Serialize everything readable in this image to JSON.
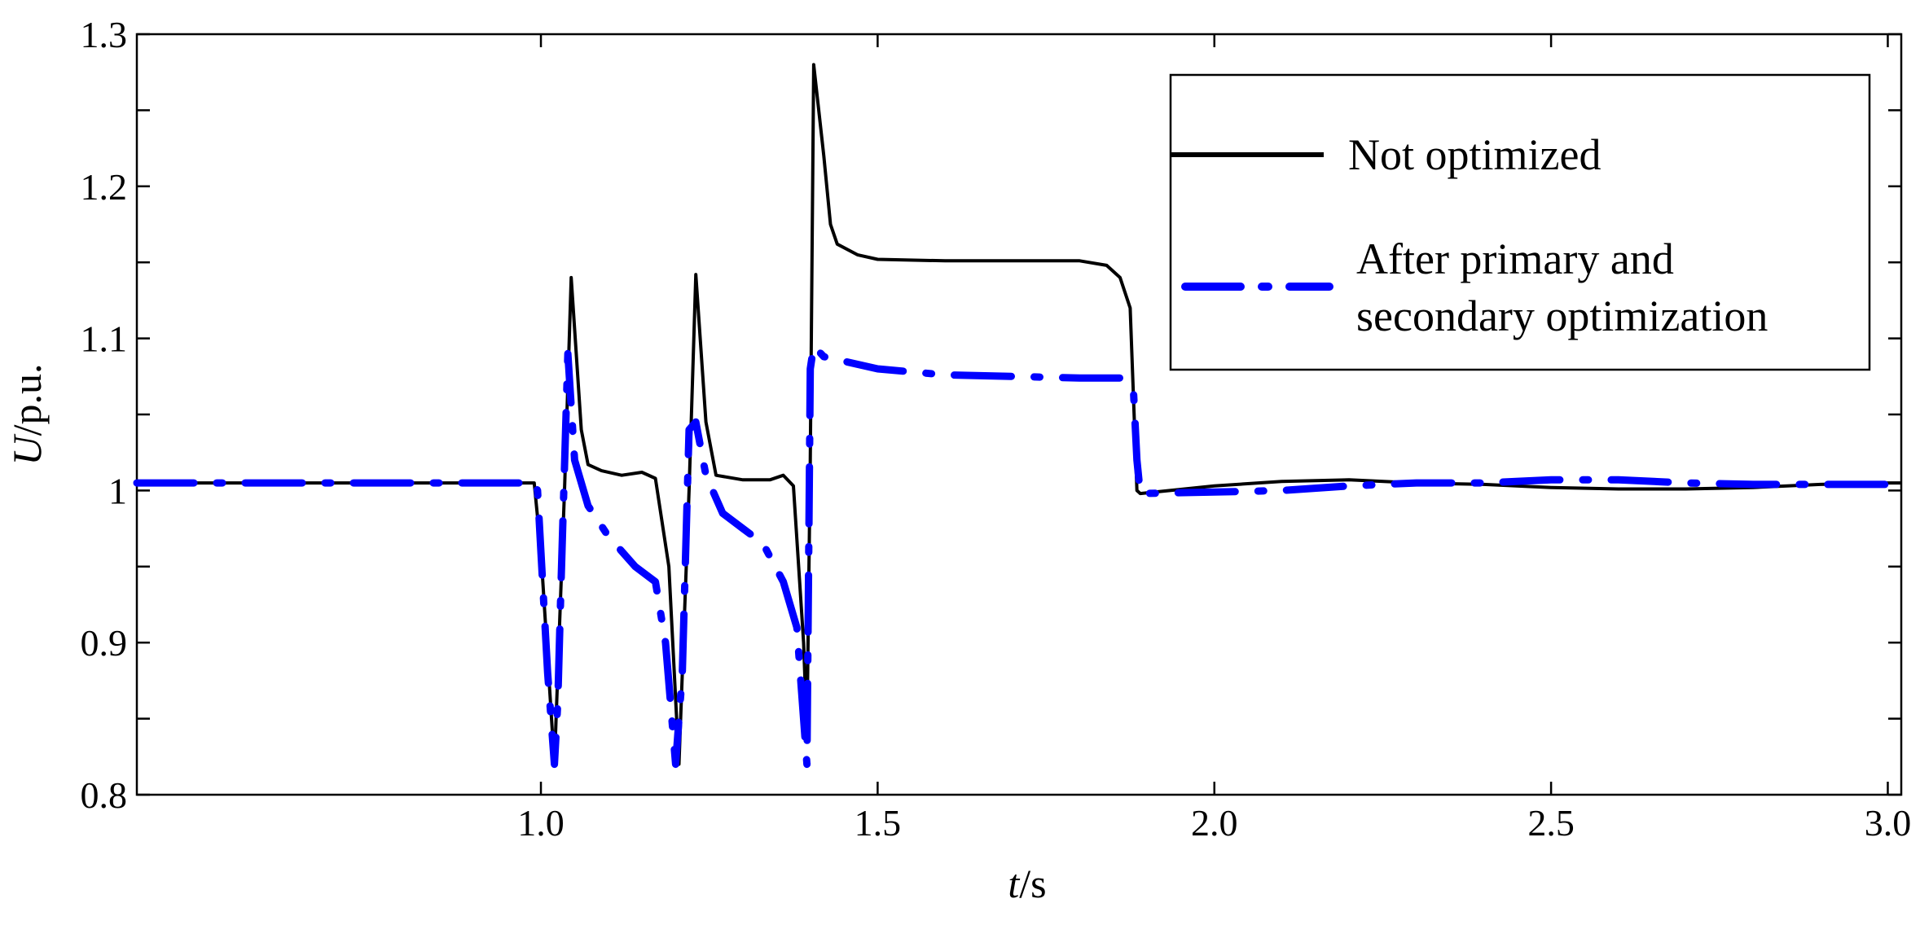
{
  "chart_data": {
    "type": "line",
    "title": "",
    "xlabel": {
      "italic": "t",
      "rest": "/s"
    },
    "ylabel": {
      "italic": "U",
      "rest": "/p.u."
    },
    "xlim": [
      0.4,
      3.02
    ],
    "ylim": [
      0.8,
      1.3
    ],
    "x_ticks": [
      1.0,
      1.5,
      2.0,
      2.5,
      3.0
    ],
    "x_tick_labels": [
      "1.0",
      "1.5",
      "2.0",
      "2.5",
      "3.0"
    ],
    "y_ticks": [
      0.8,
      0.9,
      1.0,
      1.1,
      1.2,
      1.3
    ],
    "y_tick_labels": [
      "0.8",
      "0.9",
      "1",
      "1.1",
      "1.2",
      "1.3"
    ],
    "grid": false,
    "legend_position": "top-right",
    "series": [
      {
        "name": "Not optimized",
        "color": "#000000",
        "style": "solid",
        "points": [
          [
            0.4,
            1.005
          ],
          [
            0.99,
            1.005
          ],
          [
            1.0,
            0.96
          ],
          [
            1.02,
            0.82
          ],
          [
            1.035,
            1.0
          ],
          [
            1.045,
            1.14
          ],
          [
            1.06,
            1.04
          ],
          [
            1.07,
            1.017
          ],
          [
            1.09,
            1.013
          ],
          [
            1.12,
            1.01
          ],
          [
            1.15,
            1.012
          ],
          [
            1.17,
            1.008
          ],
          [
            1.19,
            0.95
          ],
          [
            1.205,
            0.82
          ],
          [
            1.22,
            1.0
          ],
          [
            1.23,
            1.142
          ],
          [
            1.245,
            1.045
          ],
          [
            1.26,
            1.01
          ],
          [
            1.3,
            1.007
          ],
          [
            1.34,
            1.007
          ],
          [
            1.36,
            1.01
          ],
          [
            1.375,
            1.003
          ],
          [
            1.39,
            0.9
          ],
          [
            1.395,
            0.84
          ],
          [
            1.4,
            1.02
          ],
          [
            1.405,
            1.28
          ],
          [
            1.42,
            1.22
          ],
          [
            1.43,
            1.175
          ],
          [
            1.44,
            1.162
          ],
          [
            1.47,
            1.155
          ],
          [
            1.5,
            1.152
          ],
          [
            1.6,
            1.151
          ],
          [
            1.7,
            1.151
          ],
          [
            1.8,
            1.151
          ],
          [
            1.84,
            1.148
          ],
          [
            1.86,
            1.14
          ],
          [
            1.875,
            1.12
          ],
          [
            1.885,
            1.0
          ],
          [
            1.89,
            0.998
          ],
          [
            2.0,
            1.003
          ],
          [
            2.1,
            1.006
          ],
          [
            2.2,
            1.007
          ],
          [
            2.3,
            1.005
          ],
          [
            2.4,
            1.004
          ],
          [
            2.5,
            1.002
          ],
          [
            2.6,
            1.001
          ],
          [
            2.7,
            1.001
          ],
          [
            2.8,
            1.002
          ],
          [
            2.9,
            1.004
          ],
          [
            3.0,
            1.005
          ],
          [
            3.02,
            1.005
          ]
        ]
      },
      {
        "name": "After primary and secondary optimization",
        "color": "#0000ff",
        "style": "dashdot",
        "points": [
          [
            0.4,
            1.005
          ],
          [
            0.99,
            1.005
          ],
          [
            0.995,
            1.0
          ],
          [
            1.0,
            0.96
          ],
          [
            1.01,
            0.88
          ],
          [
            1.02,
            0.82
          ],
          [
            1.025,
            0.86
          ],
          [
            1.03,
            0.94
          ],
          [
            1.04,
            1.09
          ],
          [
            1.05,
            1.02
          ],
          [
            1.07,
            0.99
          ],
          [
            1.1,
            0.97
          ],
          [
            1.14,
            0.95
          ],
          [
            1.17,
            0.94
          ],
          [
            1.185,
            0.9
          ],
          [
            1.2,
            0.82
          ],
          [
            1.21,
            0.88
          ],
          [
            1.22,
            1.04
          ],
          [
            1.23,
            1.045
          ],
          [
            1.245,
            1.01
          ],
          [
            1.27,
            0.985
          ],
          [
            1.3,
            0.975
          ],
          [
            1.33,
            0.965
          ],
          [
            1.36,
            0.94
          ],
          [
            1.38,
            0.91
          ],
          [
            1.395,
            0.82
          ],
          [
            1.4,
            1.08
          ],
          [
            1.405,
            1.095
          ],
          [
            1.42,
            1.088
          ],
          [
            1.5,
            1.08
          ],
          [
            1.6,
            1.076
          ],
          [
            1.7,
            1.075
          ],
          [
            1.8,
            1.074
          ],
          [
            1.86,
            1.074
          ],
          [
            1.88,
            1.065
          ],
          [
            1.885,
            1.02
          ],
          [
            1.89,
            0.998
          ],
          [
            2.0,
            0.999
          ],
          [
            2.1,
            1.0
          ],
          [
            2.2,
            1.003
          ],
          [
            2.3,
            1.005
          ],
          [
            2.4,
            1.005
          ],
          [
            2.5,
            1.007
          ],
          [
            2.6,
            1.007
          ],
          [
            2.7,
            1.005
          ],
          [
            2.8,
            1.004
          ],
          [
            2.9,
            1.004
          ],
          [
            3.0,
            1.004
          ],
          [
            3.02,
            1.004
          ]
        ]
      }
    ]
  }
}
